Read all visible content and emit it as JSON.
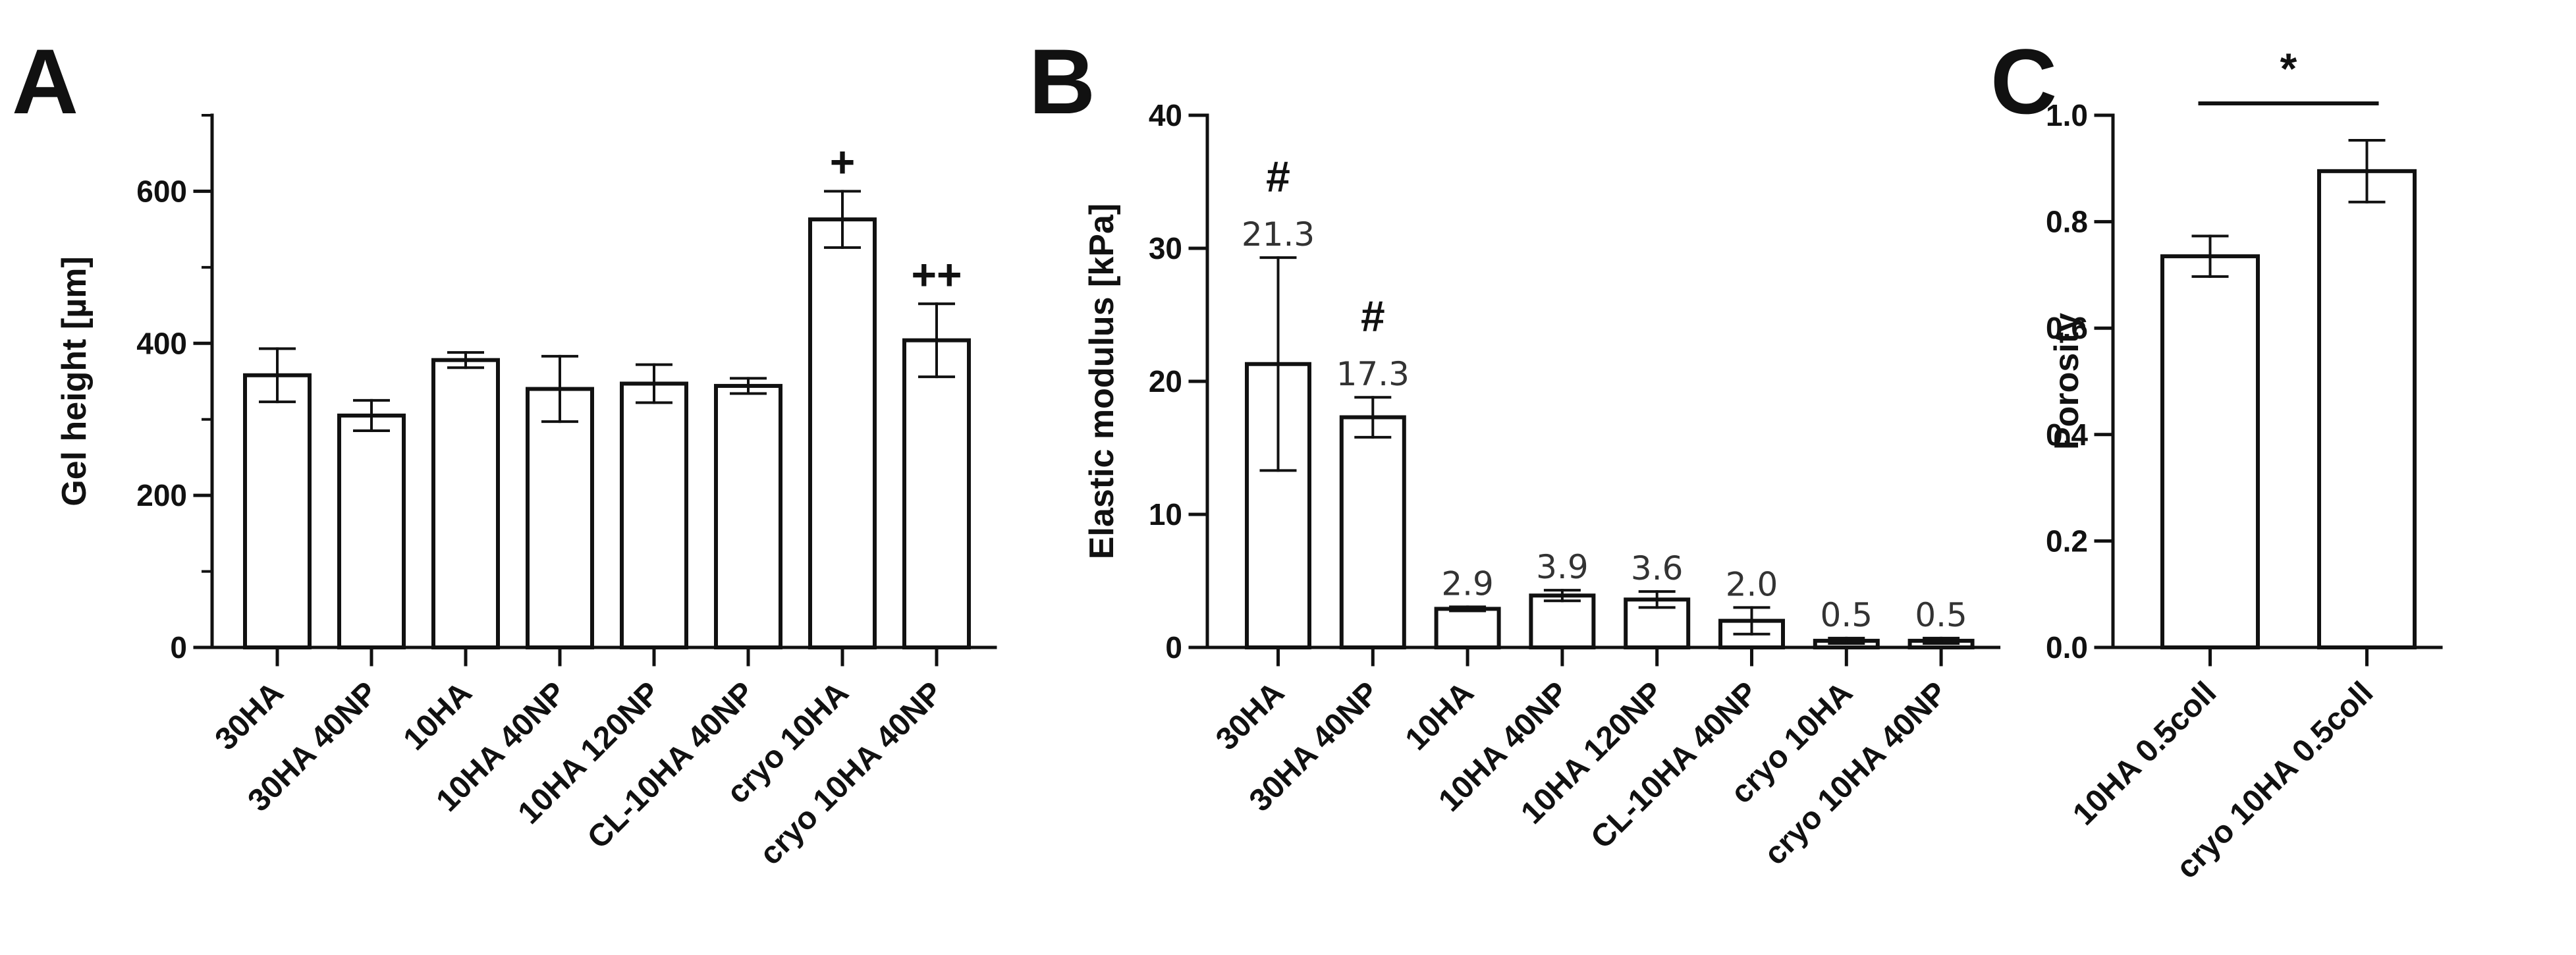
{
  "panels": [
    {
      "letter": "A",
      "chart_data": {
        "type": "bar",
        "title": "",
        "xlabel": "",
        "ylabel": "Gel height [µm]",
        "ylim": [
          0,
          700
        ],
        "yticks": [
          0,
          200,
          400,
          600
        ],
        "ytick_labels": [
          "0",
          "200",
          "400",
          "600"
        ],
        "categories": [
          "30HA",
          "30HA 40NP",
          "10HA",
          "10HA 40NP",
          "10HA 120NP",
          "CL-10HA 40NP",
          "cryo 10HA",
          "cryo 10HA 40NP"
        ],
        "values": [
          358,
          305,
          378,
          340,
          347,
          344,
          563,
          404
        ],
        "errors": [
          35,
          20,
          10,
          43,
          25,
          10,
          37,
          48
        ],
        "data_labels": [],
        "annotations": [
          {
            "category_index": 6,
            "text": "+"
          },
          {
            "category_index": 7,
            "text": "++"
          }
        ]
      }
    },
    {
      "letter": "B",
      "chart_data": {
        "type": "bar",
        "title": "",
        "xlabel": "",
        "ylabel": "Elastic modulus [kPa]",
        "ylim": [
          0,
          40
        ],
        "yticks": [
          0,
          10,
          20,
          30,
          40
        ],
        "ytick_labels": [
          "0",
          "10",
          "20",
          "30",
          "40"
        ],
        "categories": [
          "30HA",
          "30HA 40NP",
          "10HA",
          "10HA 40NP",
          "10HA 120NP",
          "CL-10HA 40NP",
          "cryo 10HA",
          "cryo 10HA 40NP"
        ],
        "values": [
          21.3,
          17.3,
          2.9,
          3.9,
          3.6,
          2.0,
          0.5,
          0.5
        ],
        "errors": [
          8.0,
          1.5,
          0.15,
          0.4,
          0.6,
          1.0,
          0.2,
          0.2
        ],
        "data_labels": [
          "21.3",
          "17.3",
          "2.9",
          "3.9",
          "3.6",
          "2.0",
          "0.5",
          "0.5"
        ],
        "annotations": [
          {
            "category_index": 0,
            "text": "#"
          },
          {
            "category_index": 1,
            "text": "#"
          }
        ]
      }
    },
    {
      "letter": "C",
      "chart_data": {
        "type": "bar",
        "title": "",
        "xlabel": "",
        "ylabel": "Porosity",
        "ylim": [
          0,
          1.0
        ],
        "yticks": [
          0,
          0.2,
          0.4,
          0.6,
          0.8,
          1.0
        ],
        "ytick_labels": [
          "0.0",
          "0.2",
          "0.4",
          "0.6",
          "0.8",
          "1.0"
        ],
        "categories": [
          "10HA 0.5coll",
          "cryo 10HA 0.5coll"
        ],
        "values": [
          0.735,
          0.895
        ],
        "errors": [
          0.038,
          0.058
        ],
        "data_labels": [],
        "annotations": [],
        "significance": {
          "from_index": 0,
          "to_index": 1,
          "text": "*"
        }
      }
    }
  ]
}
